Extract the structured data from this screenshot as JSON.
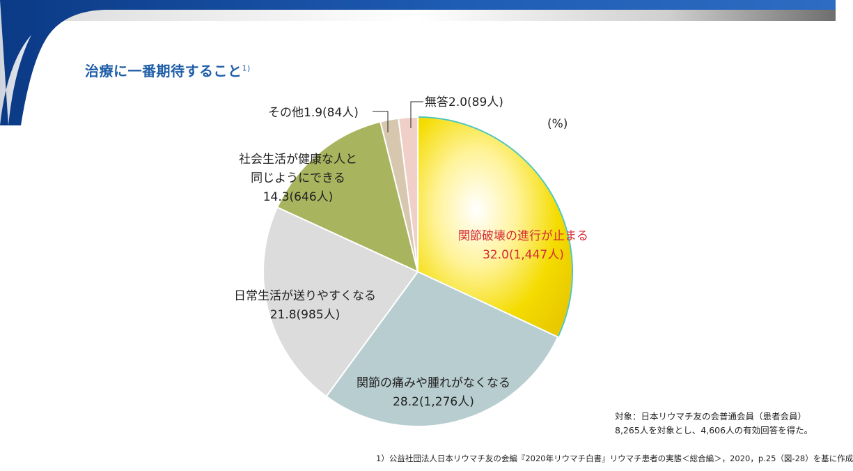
{
  "header": {
    "title": "治療に一番期待すること",
    "title_ref": "1)",
    "unit": "(%)"
  },
  "chart_data": {
    "type": "pie",
    "title": "治療に一番期待すること",
    "unit": "%",
    "start": "12 o'clock",
    "direction": "clockwise",
    "slices": [
      {
        "label": "関節破壊の進行が止まる",
        "value": 32.0,
        "count": "1,447人",
        "display_value": "32.0(1,447人)",
        "color": "#f2d600"
      },
      {
        "label": "関節の痛みや腫れがなくなる",
        "value": 28.2,
        "count": "1,276人",
        "display_value": "28.2(1,276人)",
        "color": "#b8cdd0"
      },
      {
        "label": "日常生活が送りやすくなる",
        "value": 21.8,
        "count": "985人",
        "display_value": "21.8(985人)",
        "color": "#dcdcdc"
      },
      {
        "label": "社会生活が健康な人と同じようにできる",
        "label_lines": [
          "社会生活が健康な人と",
          "同じようにできる"
        ],
        "value": 14.3,
        "count": "646人",
        "display_value": "14.3(646人)",
        "color": "#a9b45e"
      },
      {
        "label": "その他",
        "value": 1.9,
        "count": "84人",
        "display_value": "その他1.9(84人)",
        "color": "#d6c7ae"
      },
      {
        "label": "無答",
        "value": 2.0,
        "count": "89人",
        "display_value": "無答2.0(89人)",
        "color": "#f0cfc8"
      }
    ]
  },
  "notes": {
    "line1": "対象：日本リウマチ友の会普通会員（患者会員）",
    "line2": "8,265人を対象とし、4,606人の有効回答を得た。"
  },
  "footnote": "1）公益社団法人日本リウマチ友の会編『2020年リウマチ白書』リウマチ患者の実態＜総合編＞，2020，p.25（図-28）を基に作成",
  "colors": {
    "banner_dark": "#0d3f8c",
    "banner_light": "#2f6fc4",
    "title": "#1f5fa8",
    "highlight_text": "#d62a36"
  }
}
